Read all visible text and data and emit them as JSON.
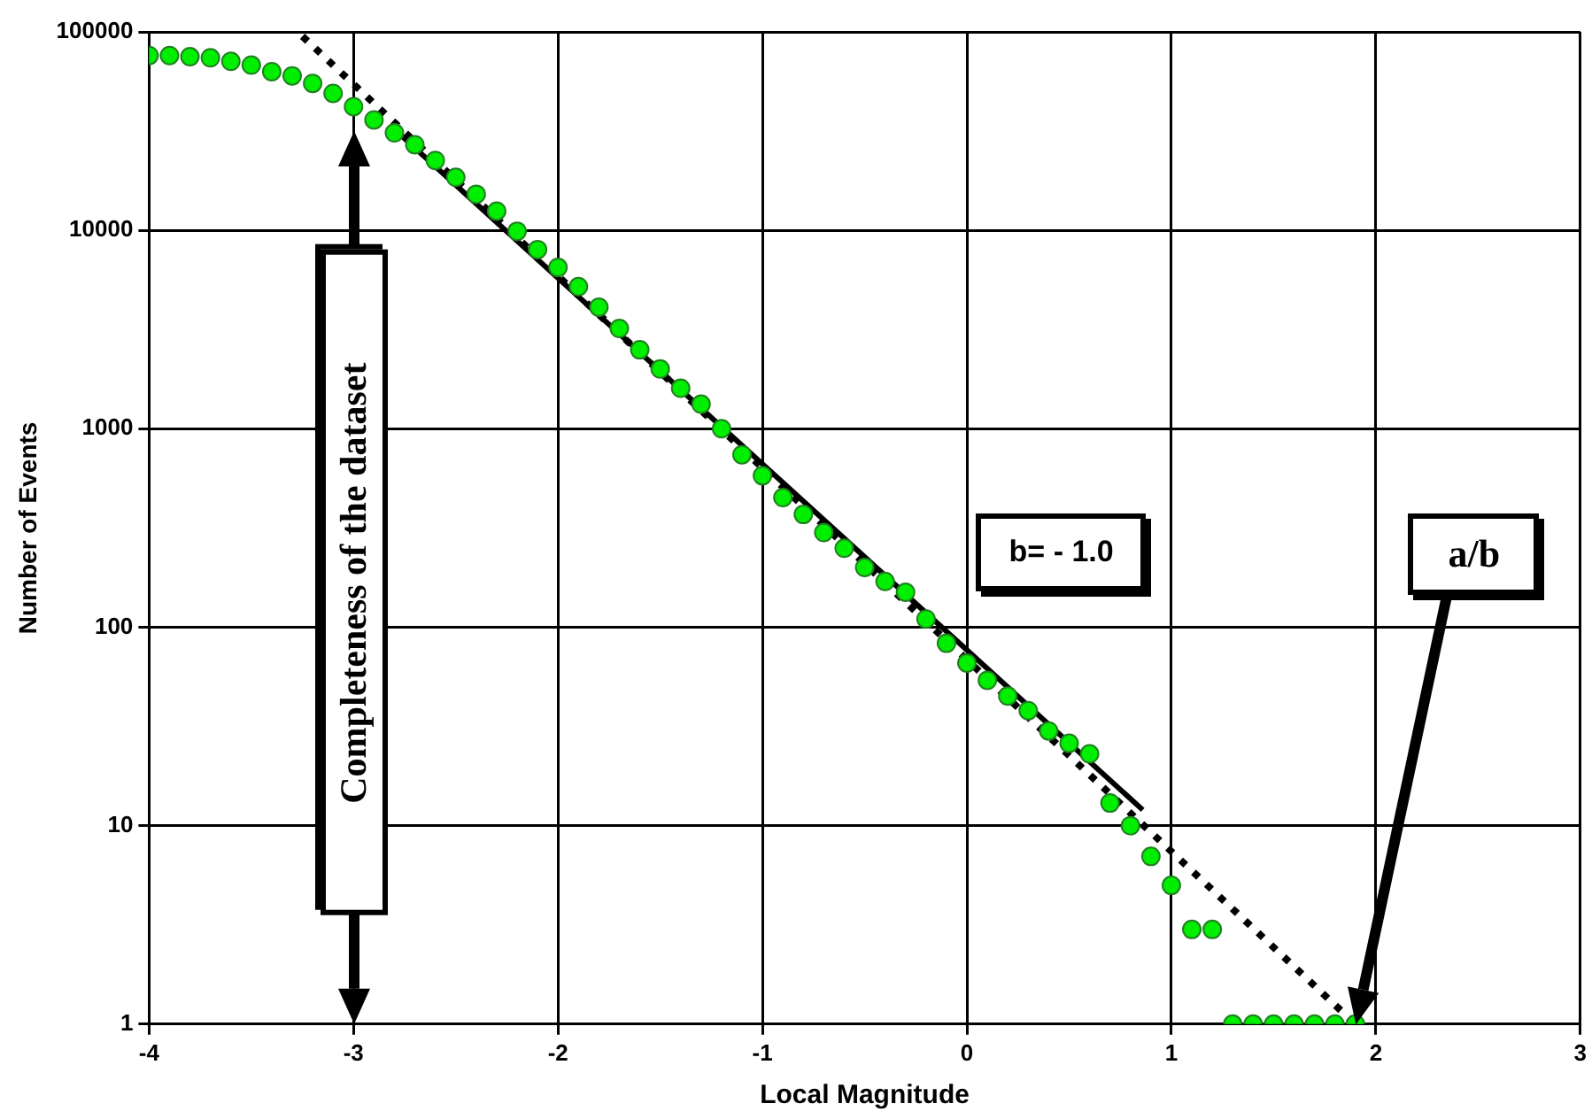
{
  "chart_data": {
    "type": "scatter",
    "xlabel": "Local Magnitude",
    "ylabel": "Number of Events",
    "xlim": [
      -4,
      3
    ],
    "xticks": [
      -4,
      -3,
      -2,
      -1,
      0,
      1,
      2,
      3
    ],
    "ylim": [
      1,
      100000
    ],
    "yticks": [
      1,
      10,
      100,
      1000,
      10000,
      100000
    ],
    "log": "y",
    "grid": true,
    "legend": false,
    "marker": "circle",
    "series": [
      {
        "type": "scatter",
        "color": "#00ee00",
        "x": [
          -4,
          -3.9,
          -3.8,
          -3.7,
          -3.6,
          -3.5,
          -3.4,
          -3.3,
          -3.2,
          -3.1,
          -3,
          -2.9,
          -2.8,
          -2.7,
          -2.6,
          -2.5,
          -2.4,
          -2.3,
          -2.2,
          -2.1,
          -2,
          -1.9,
          -1.8,
          -1.7,
          -1.6,
          -1.5,
          -1.4,
          -1.3,
          -1.2,
          -1.1,
          -1,
          -0.9,
          -0.8,
          -0.7,
          -0.6,
          -0.5,
          -0.4,
          -0.3,
          -0.2,
          -0.1,
          0,
          0.1,
          0.2,
          0.3,
          0.4,
          0.5,
          0.6,
          0.7,
          0.8,
          0.9,
          1,
          1.1,
          1.2,
          1.3,
          1.4,
          1.5,
          1.6,
          1.7,
          1.8,
          1.9
        ],
        "values": [
          76000,
          76000,
          75000,
          74000,
          71000,
          68000,
          63000,
          60000,
          55000,
          49000,
          42000,
          36000,
          31000,
          27000,
          22500,
          18500,
          15200,
          12500,
          9900,
          8000,
          6500,
          5200,
          4100,
          3200,
          2500,
          2000,
          1600,
          1330,
          1000,
          740,
          580,
          450,
          370,
          300,
          250,
          200,
          170,
          150,
          110,
          83,
          66,
          54,
          45,
          38,
          30,
          26,
          23,
          13,
          10,
          7,
          5,
          3,
          3,
          1,
          1,
          1,
          1,
          1,
          1,
          1
        ]
      },
      {
        "type": "line",
        "color": "#000000",
        "line_style": "solid",
        "marker": "none",
        "x": [
          -2.81,
          0.86
        ],
        "values": [
          33000,
          12
        ]
      },
      {
        "type": "line",
        "color": "#000000",
        "line_style": "dotted",
        "marker": "none",
        "x": [
          -3.25,
          1.9
        ],
        "values": [
          95000,
          1
        ]
      }
    ],
    "annotations": [
      "Completeness of the dataset",
      "b= - 1.0",
      "a/b"
    ]
  }
}
